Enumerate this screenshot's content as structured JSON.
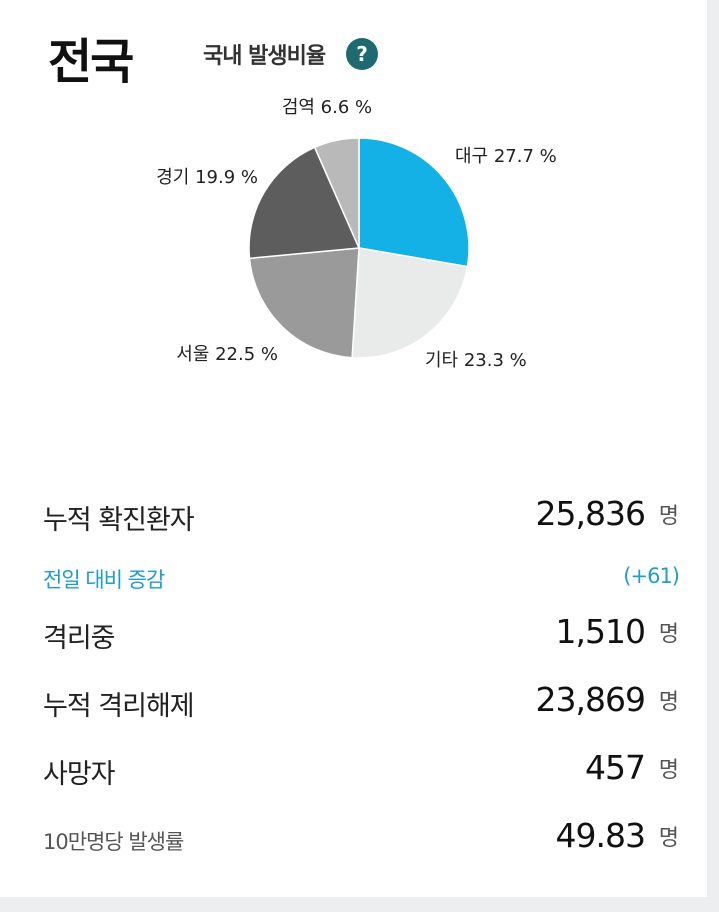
{
  "header": {
    "region": "전국",
    "subtitle": "국내 발생비율",
    "help_glyph": "?"
  },
  "chart_data": {
    "type": "pie",
    "title": "국내 발생비율",
    "slices": [
      {
        "label": "대구",
        "value": 27.7,
        "color": "#14b1e7"
      },
      {
        "label": "기타",
        "value": 23.3,
        "color": "#e9eaea"
      },
      {
        "label": "서울",
        "value": 22.5,
        "color": "#9a9a9a"
      },
      {
        "label": "경기",
        "value": 19.9,
        "color": "#5d5d5d"
      },
      {
        "label": "검역",
        "value": 6.6,
        "color": "#b9b9b9"
      }
    ],
    "unit": "%"
  },
  "stats": {
    "confirmed": {
      "label": "누적 확진환자",
      "value": "25,836",
      "unit": "명"
    },
    "change": {
      "label": "전일 대비 증감",
      "value": "(+61)"
    },
    "isolated": {
      "label": "격리중",
      "value": "1,510",
      "unit": "명"
    },
    "released": {
      "label": "누적 격리해제",
      "value": "23,869",
      "unit": "명"
    },
    "deaths": {
      "label": "사망자",
      "value": "457",
      "unit": "명"
    },
    "incidence": {
      "label": "10만명당 발생률",
      "value": "49.83",
      "unit": "명"
    }
  }
}
